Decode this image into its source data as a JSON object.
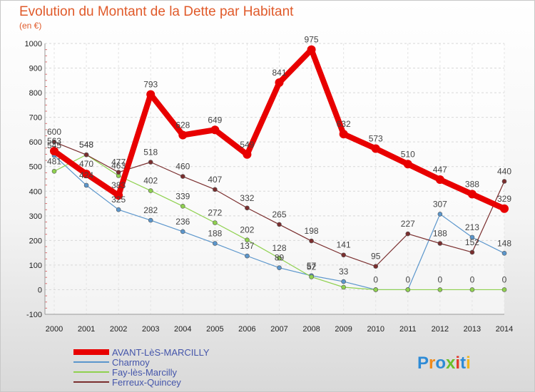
{
  "title": "Evolution du Montant de la Dette par Habitant",
  "subtitle": "(en €)",
  "logo": {
    "letters": [
      "P",
      "r",
      "o",
      "x",
      "i",
      "t",
      "i"
    ],
    "colors": [
      "#2e8bd6",
      "#f08a1c",
      "#2e8bd6",
      "#6bbf2a",
      "#e23a2a",
      "#2e8bd6",
      "#f0b51c"
    ]
  },
  "chart_data": {
    "type": "line",
    "title": "Evolution du Montant de la Dette par Habitant",
    "ylabel": "(en €)",
    "xlabel": "",
    "ylim": [
      -100,
      1000
    ],
    "yticks": [
      "-100",
      "0",
      "100",
      "200",
      "300",
      "400",
      "500",
      "600",
      "700",
      "800",
      "900",
      "1000"
    ],
    "x": [
      "2000",
      "2001",
      "2002",
      "2003",
      "2004",
      "2005",
      "2006",
      "2007",
      "2008",
      "2009",
      "2010",
      "2011",
      "2012",
      "2013",
      "2014"
    ],
    "series": [
      {
        "name": "AVANT-LèS-MARCILLY",
        "color": "#e80000",
        "width": 8,
        "marker": 6,
        "values": [
          563,
          470,
          383,
          793,
          628,
          649,
          549,
          841,
          975,
          632,
          573,
          510,
          447,
          388,
          329
        ],
        "labels": [
          "563",
          "470",
          "383",
          "793",
          "628",
          "649",
          "549",
          "841",
          "975",
          "632",
          "573",
          "510",
          "447",
          "388",
          "329"
        ]
      },
      {
        "name": "Charmoy",
        "color": "#5b96cc",
        "width": 1.2,
        "marker": 3,
        "values": [
          545,
          424,
          325,
          282,
          236,
          188,
          137,
          89,
          57,
          33,
          0,
          0,
          307,
          213,
          148
        ],
        "labels": [
          "545",
          "424",
          "325",
          "282",
          "236",
          "188",
          "137",
          "89",
          "57",
          "33",
          "0",
          "0",
          "307",
          "213",
          "148"
        ]
      },
      {
        "name": "Fay-lès-Marcilly",
        "color": "#8fd14f",
        "width": 1.2,
        "marker": 3,
        "values": [
          481,
          548,
          463,
          402,
          339,
          272,
          202,
          128,
          52,
          10,
          0,
          0,
          0,
          0,
          0
        ],
        "labels": [
          "481",
          "548",
          "463",
          "402",
          "339",
          "272",
          "202",
          "128",
          "52",
          "",
          "",
          "",
          "0",
          "0",
          "0"
        ]
      },
      {
        "name": "Ferreux-Quincey",
        "color": "#7a2e2e",
        "width": 1.2,
        "marker": 3,
        "values": [
          600,
          548,
          477,
          518,
          460,
          407,
          332,
          265,
          198,
          141,
          95,
          227,
          188,
          152,
          440
        ],
        "labels": [
          "600",
          "548",
          "477",
          "518",
          "460",
          "407",
          "332",
          "265",
          "198",
          "141",
          "95",
          "227",
          "188",
          "152",
          "440"
        ]
      }
    ]
  }
}
